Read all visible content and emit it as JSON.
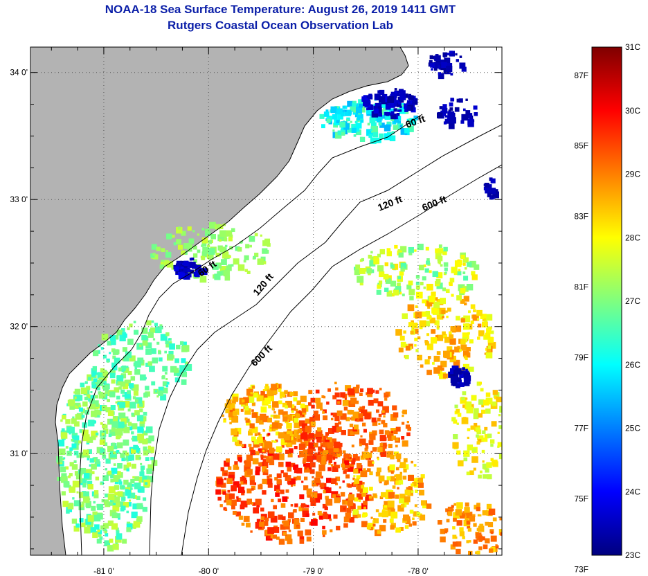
{
  "title": {
    "line1": "NOAA-18 Sea Surface Temperature:  August 26, 2019 1411 GMT",
    "line2": "Rutgers Coastal Ocean Observation Lab"
  },
  "map": {
    "lon_range": [
      -81.7,
      -77.2
    ],
    "lat_range": [
      30.2,
      34.2
    ],
    "lon_ticks": [
      {
        "value": -81,
        "label": "-81 0'"
      },
      {
        "value": -80,
        "label": "-80 0'"
      },
      {
        "value": -79,
        "label": "-79 0'"
      },
      {
        "value": -78,
        "label": "-78 0'"
      }
    ],
    "lat_ticks": [
      {
        "value": 34,
        "label": "34 0'"
      },
      {
        "value": 33,
        "label": "33 0'"
      },
      {
        "value": 32,
        "label": "32 0'"
      },
      {
        "value": 31,
        "label": "31 0'"
      }
    ],
    "land_color": "#b3b3b3",
    "ocean_color": "#ffffff",
    "contours": [
      {
        "label": "60 ft"
      },
      {
        "label": "120 ft"
      },
      {
        "label": "600 ft"
      }
    ]
  },
  "colorbar": {
    "celsius_range": [
      23,
      31
    ],
    "celsius_labels": [
      "31C",
      "30C",
      "29C",
      "28C",
      "27C",
      "26C",
      "25C",
      "24C",
      "23C"
    ],
    "fahrenheit_labels": [
      "87F",
      "85F",
      "83F",
      "81F",
      "79F",
      "77F",
      "75F",
      "73F"
    ],
    "colors": [
      "#00007f",
      "#0000ff",
      "#007fff",
      "#00ffff",
      "#7fff7f",
      "#ffff00",
      "#ff7f00",
      "#ff0000",
      "#7f0000"
    ]
  }
}
